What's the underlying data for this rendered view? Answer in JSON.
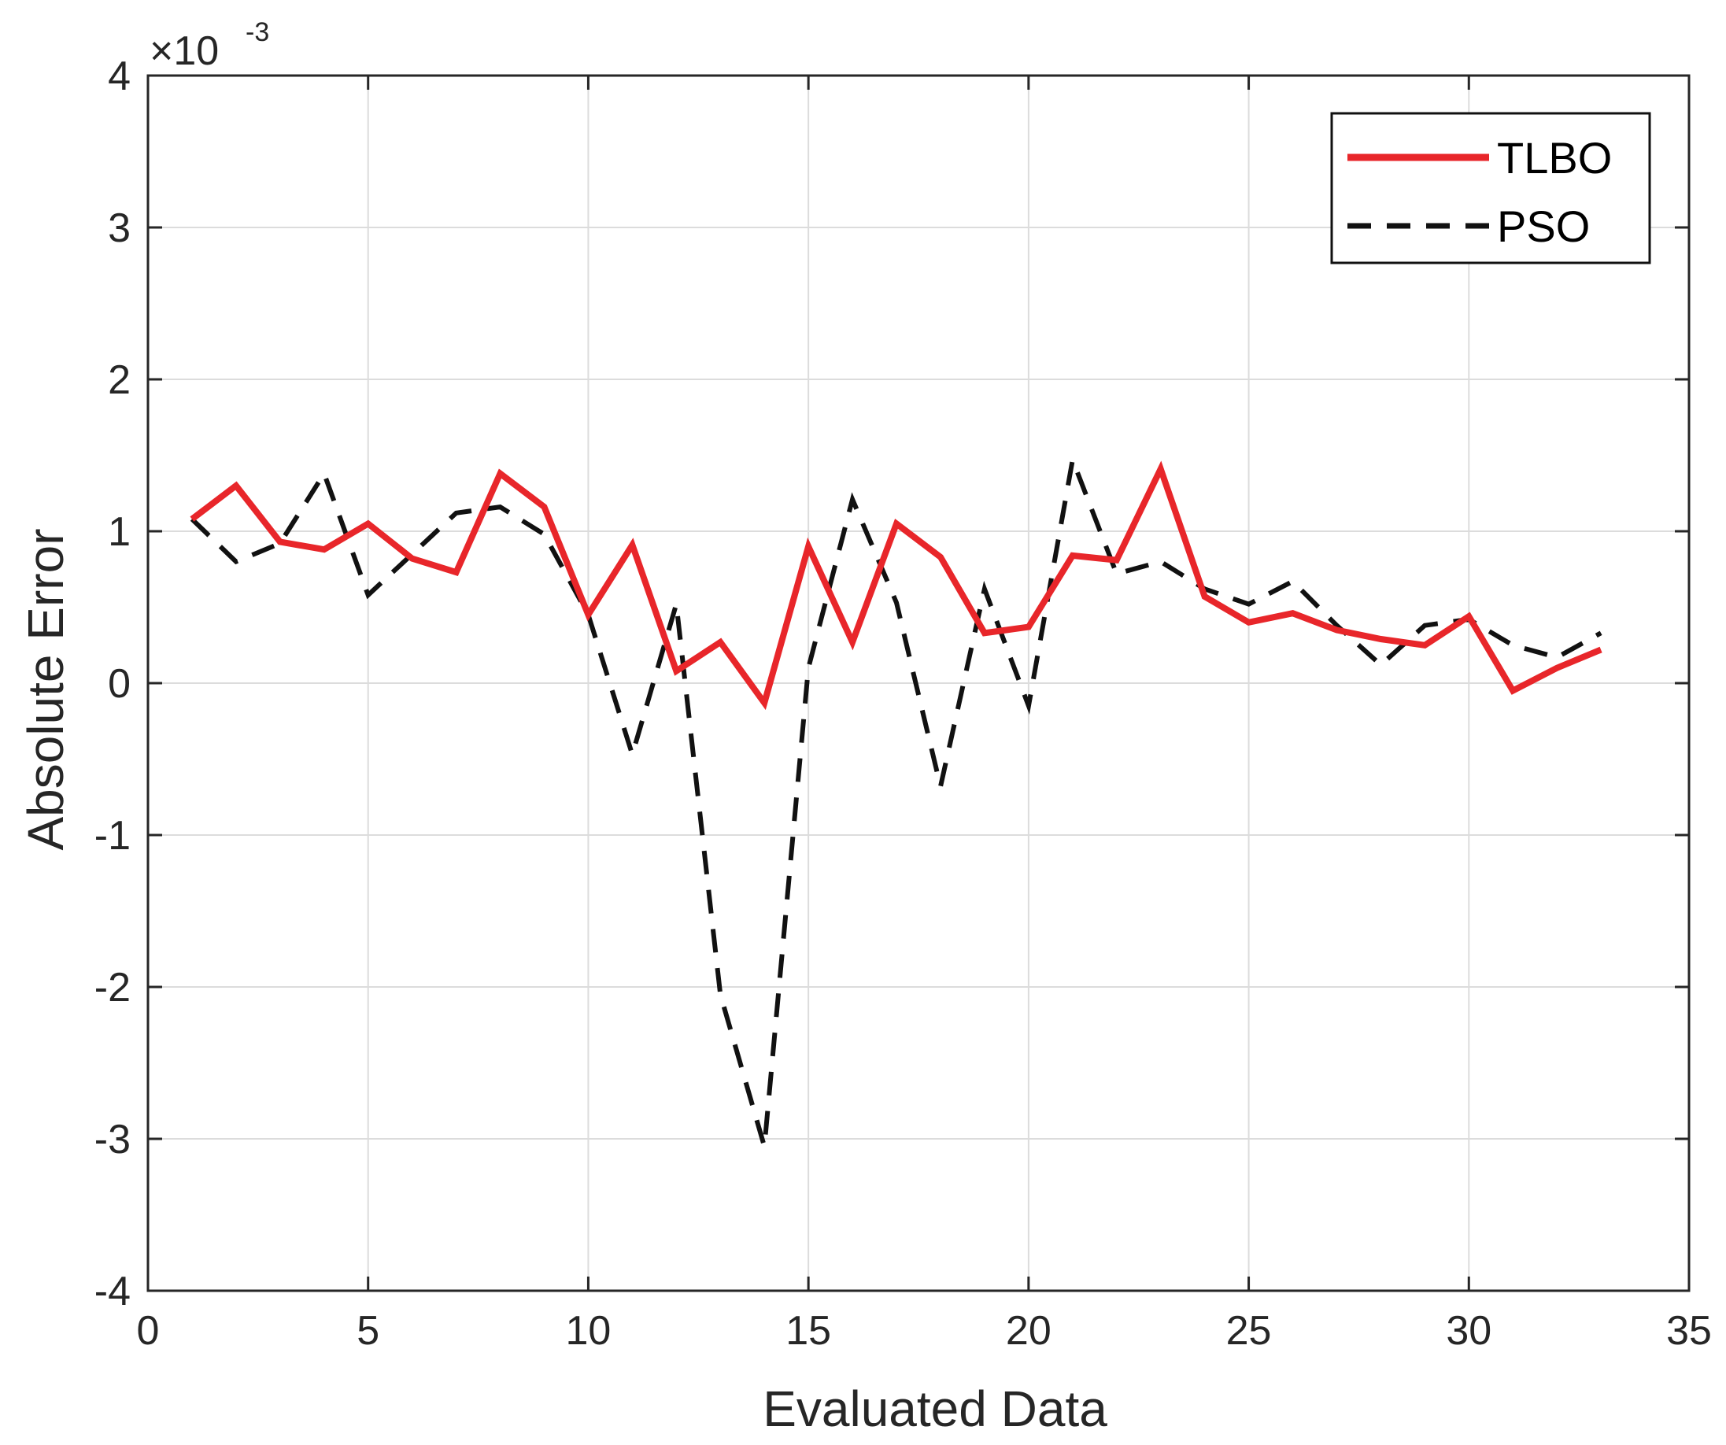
{
  "chart_data": {
    "type": "line",
    "title": "",
    "xlabel": "Evaluated Data",
    "ylabel": "Absolute Error",
    "y_exponent": {
      "base": "10",
      "power": "-3",
      "prefix": "×"
    },
    "xlim": [
      0,
      35
    ],
    "ylim": [
      -4,
      4
    ],
    "xticks": [
      0,
      5,
      10,
      15,
      20,
      25,
      30,
      35
    ],
    "yticks": [
      -4,
      -3,
      -2,
      -1,
      0,
      1,
      2,
      3,
      4
    ],
    "grid": true,
    "legend_position": "top-right",
    "x": [
      1,
      2,
      3,
      4,
      5,
      6,
      7,
      8,
      9,
      10,
      11,
      12,
      13,
      14,
      15,
      16,
      17,
      18,
      19,
      20,
      21,
      22,
      23,
      24,
      25,
      26,
      27,
      28,
      29,
      30,
      31,
      32,
      33
    ],
    "series": [
      {
        "name": "TLBO",
        "color": "#e8262a",
        "style": "solid",
        "values": [
          1.08,
          1.3,
          0.93,
          0.88,
          1.05,
          0.82,
          0.73,
          1.38,
          1.16,
          0.45,
          0.91,
          0.08,
          0.27,
          -0.13,
          0.9,
          0.27,
          1.05,
          0.83,
          0.33,
          0.37,
          0.84,
          0.81,
          1.41,
          0.57,
          0.4,
          0.46,
          0.35,
          0.29,
          0.25,
          0.44,
          -0.05,
          0.1,
          0.22
        ]
      },
      {
        "name": "PSO",
        "color": "#111111",
        "style": "dashed",
        "values": [
          1.08,
          0.8,
          0.92,
          1.38,
          0.58,
          0.85,
          1.12,
          1.16,
          0.98,
          0.45,
          -0.47,
          0.52,
          -2.05,
          -3.05,
          0.1,
          1.21,
          0.53,
          -0.68,
          0.62,
          -0.15,
          1.47,
          0.72,
          0.8,
          0.62,
          0.52,
          0.67,
          0.38,
          0.12,
          0.38,
          0.42,
          0.25,
          0.17,
          0.33
        ]
      }
    ]
  }
}
